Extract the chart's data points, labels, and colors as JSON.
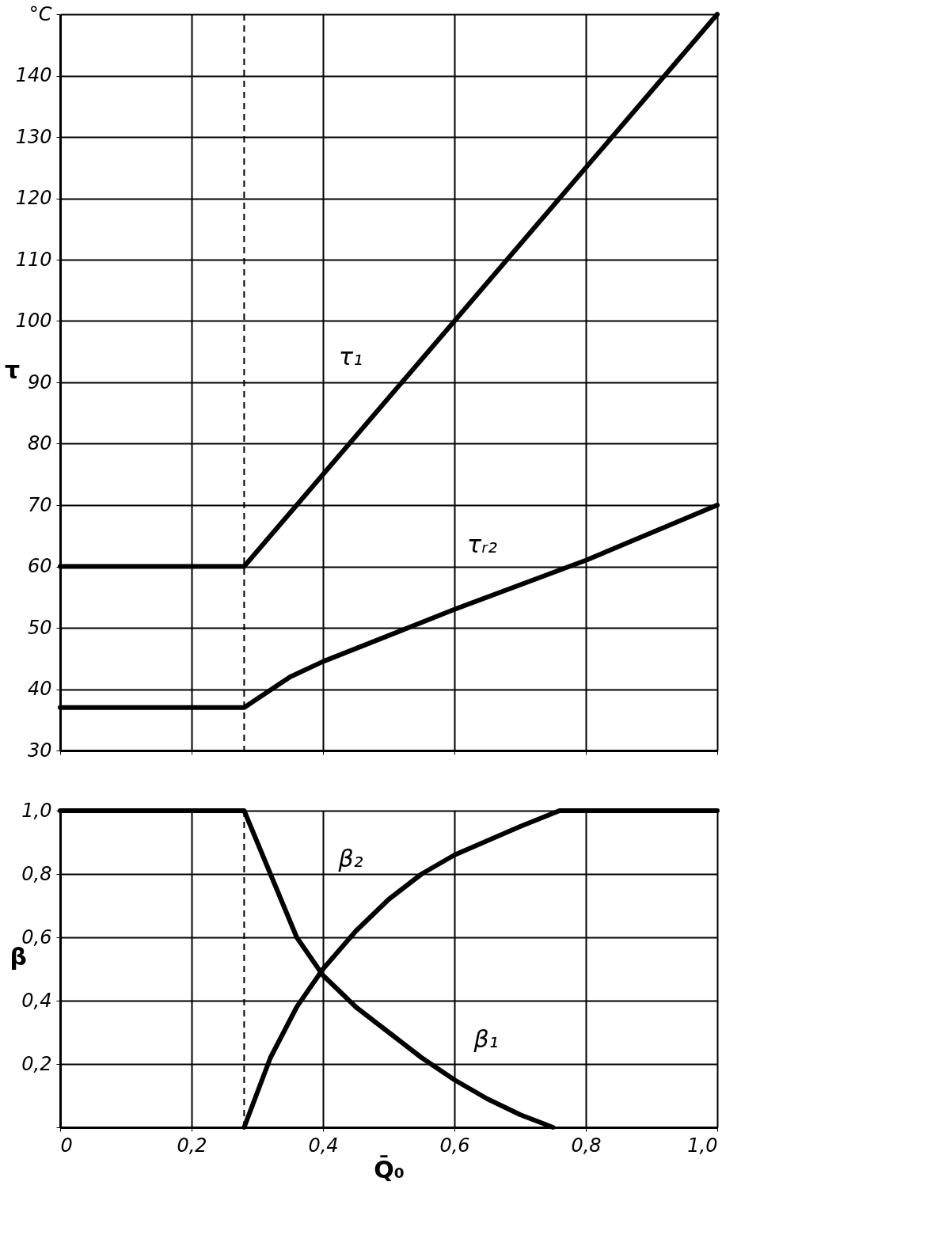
{
  "chart_data": [
    {
      "type": "line",
      "ylabel": "τ",
      "xlim": [
        0,
        1.0
      ],
      "ylim": [
        30,
        150
      ],
      "xticks": [
        0,
        0.2,
        0.4,
        0.6,
        0.8,
        1.0
      ],
      "yticks": [
        30,
        40,
        50,
        60,
        70,
        80,
        90,
        100,
        110,
        120,
        130,
        140,
        {
          "value": 150,
          "label": "°C"
        }
      ],
      "tick_labels": "y",
      "grid": true,
      "marker": "none",
      "line_style": "solid",
      "series": [
        {
          "color": "#000000",
          "x": [
            0,
            0.28,
            1.0
          ],
          "values": [
            60,
            60,
            150
          ]
        },
        {
          "color": "#000000",
          "x": [
            0,
            0.28,
            0.35,
            0.4,
            0.6,
            0.8,
            1.0
          ],
          "values": [
            37,
            37,
            42,
            44.5,
            53,
            61,
            70
          ]
        }
      ],
      "ref_lines": [
        {
          "axis": "x",
          "value": 0.28,
          "label": null,
          "color": "#000000",
          "line_style": "dashed"
        }
      ],
      "annotations": [
        {
          "text": "τ₁",
          "x": 0.5,
          "y": 87.5
        },
        {
          "text": "τᵣ₂",
          "x": 0.7,
          "y": 57
        }
      ]
    },
    {
      "type": "line",
      "ylabel": "β",
      "xlabel": "Q̄₀",
      "xlim": [
        0,
        1.0
      ],
      "ylim": [
        0,
        1.0
      ],
      "xticks": [
        {
          "value": 0,
          "label": "0"
        },
        {
          "value": 0.2,
          "label": "0,2"
        },
        {
          "value": 0.4,
          "label": "0,4"
        },
        {
          "value": 0.6,
          "label": "0,6"
        },
        {
          "value": 0.8,
          "label": "0,8"
        },
        {
          "value": 1.0,
          "label": "1,0"
        }
      ],
      "yticks": [
        {
          "value": 0,
          "label": null
        },
        {
          "value": 0.2,
          "label": "0,2"
        },
        {
          "value": 0.4,
          "label": "0,4"
        },
        {
          "value": 0.6,
          "label": "0,6"
        },
        {
          "value": 0.8,
          "label": "0,8"
        },
        {
          "value": 1.0,
          "label": "1,0"
        }
      ],
      "grid": true,
      "marker": "none",
      "line_style": "solid",
      "series": [
        {
          "color": "#000000",
          "x": [
            0,
            0.28,
            0.32,
            0.36,
            0.4,
            0.45,
            0.5,
            0.55,
            0.6,
            0.65,
            0.7,
            0.75
          ],
          "values": [
            1.0,
            1.0,
            0.8,
            0.6,
            0.48,
            0.38,
            0.3,
            0.22,
            0.15,
            0.09,
            0.04,
            0
          ]
        },
        {
          "color": "#000000",
          "x": [
            0.28,
            0.32,
            0.36,
            0.4,
            0.45,
            0.5,
            0.55,
            0.6,
            0.7,
            0.76,
            1.0
          ],
          "values": [
            0,
            0.22,
            0.38,
            0.5,
            0.62,
            0.72,
            0.8,
            0.86,
            0.95,
            1.0,
            1.0
          ]
        }
      ],
      "ref_lines": [
        {
          "axis": "x",
          "value": 0.28,
          "label": null,
          "color": "#000000",
          "line_style": "dashed"
        }
      ],
      "annotations": [
        {
          "text": "β₂",
          "x": 0.5,
          "y": 0.72
        },
        {
          "text": "β₁",
          "x": 0.6,
          "y": 0.15
        }
      ]
    }
  ]
}
